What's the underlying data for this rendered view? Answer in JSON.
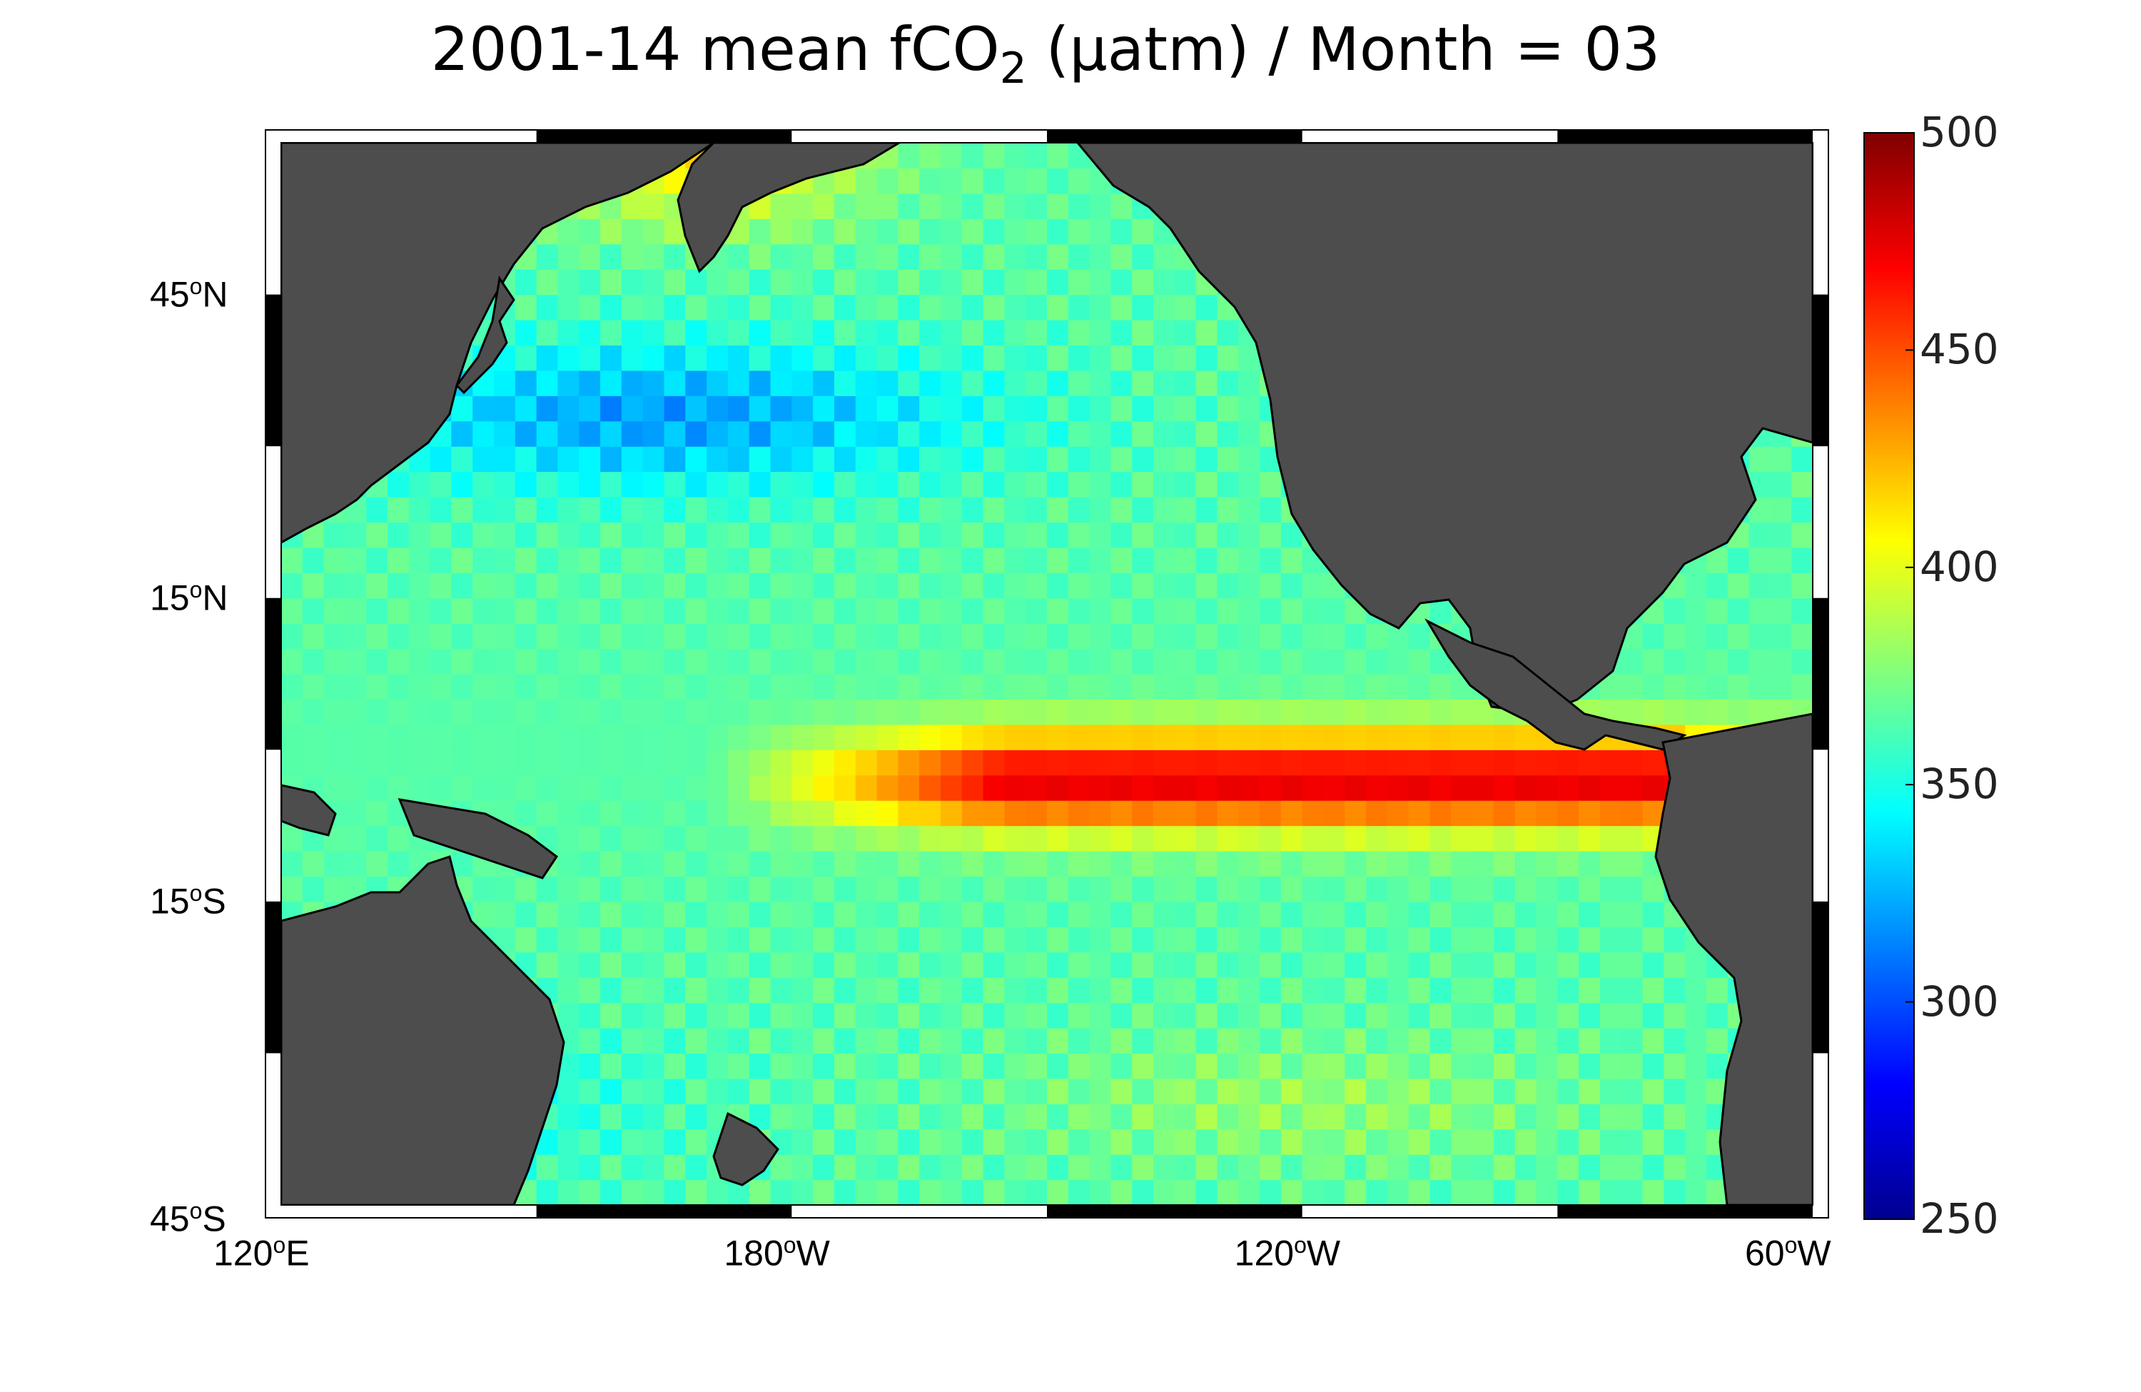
{
  "title": {
    "prefix": "2001-14 mean fCO",
    "subscript": "2",
    "suffix": " (µatm) / Month = 03"
  },
  "colors": {
    "land": "#4d4d4d",
    "no_data": "#ffffff",
    "coast_line": "#000000",
    "frame": "#000000"
  },
  "map": {
    "lon_range": [
      120,
      300
    ],
    "lat_range": [
      -45,
      60
    ],
    "projection": "equidistant cylindrical (Pacific-centred)",
    "lon_ticks": [
      {
        "lon": 120,
        "value": "120",
        "hemi": "E"
      },
      {
        "lon": 180,
        "value": "180",
        "hemi": "W"
      },
      {
        "lon": 240,
        "value": "120",
        "hemi": "W"
      },
      {
        "lon": 300,
        "value": "60",
        "hemi": "W"
      }
    ],
    "lat_ticks": [
      {
        "lat": 45,
        "value": "45",
        "hemi": "N"
      },
      {
        "lat": 15,
        "value": "15",
        "hemi": "N"
      },
      {
        "lat": -15,
        "value": "15",
        "hemi": "S"
      },
      {
        "lat": -45,
        "value": "45",
        "hemi": "S"
      }
    ],
    "degree_symbol": "o"
  },
  "colorbar": {
    "min": 250,
    "max": 500,
    "colormap": "jet",
    "ticks": [
      "500",
      "450",
      "400",
      "350",
      "300",
      "250"
    ]
  },
  "field_description": {
    "equatorial_upwelling_band": "high fCO2 (~450-490 µatm) along the equator from ~170°E to South American coast",
    "subtropical_north_pacific": "low fCO2 (~310-330 µatm) near 30-35°N, 130°E-160°W",
    "kamchatka_bering": "elevated fCO2 (~410-430 µatm) north of ~50°N",
    "southern_subtropics": "~350-370 µatm"
  }
}
